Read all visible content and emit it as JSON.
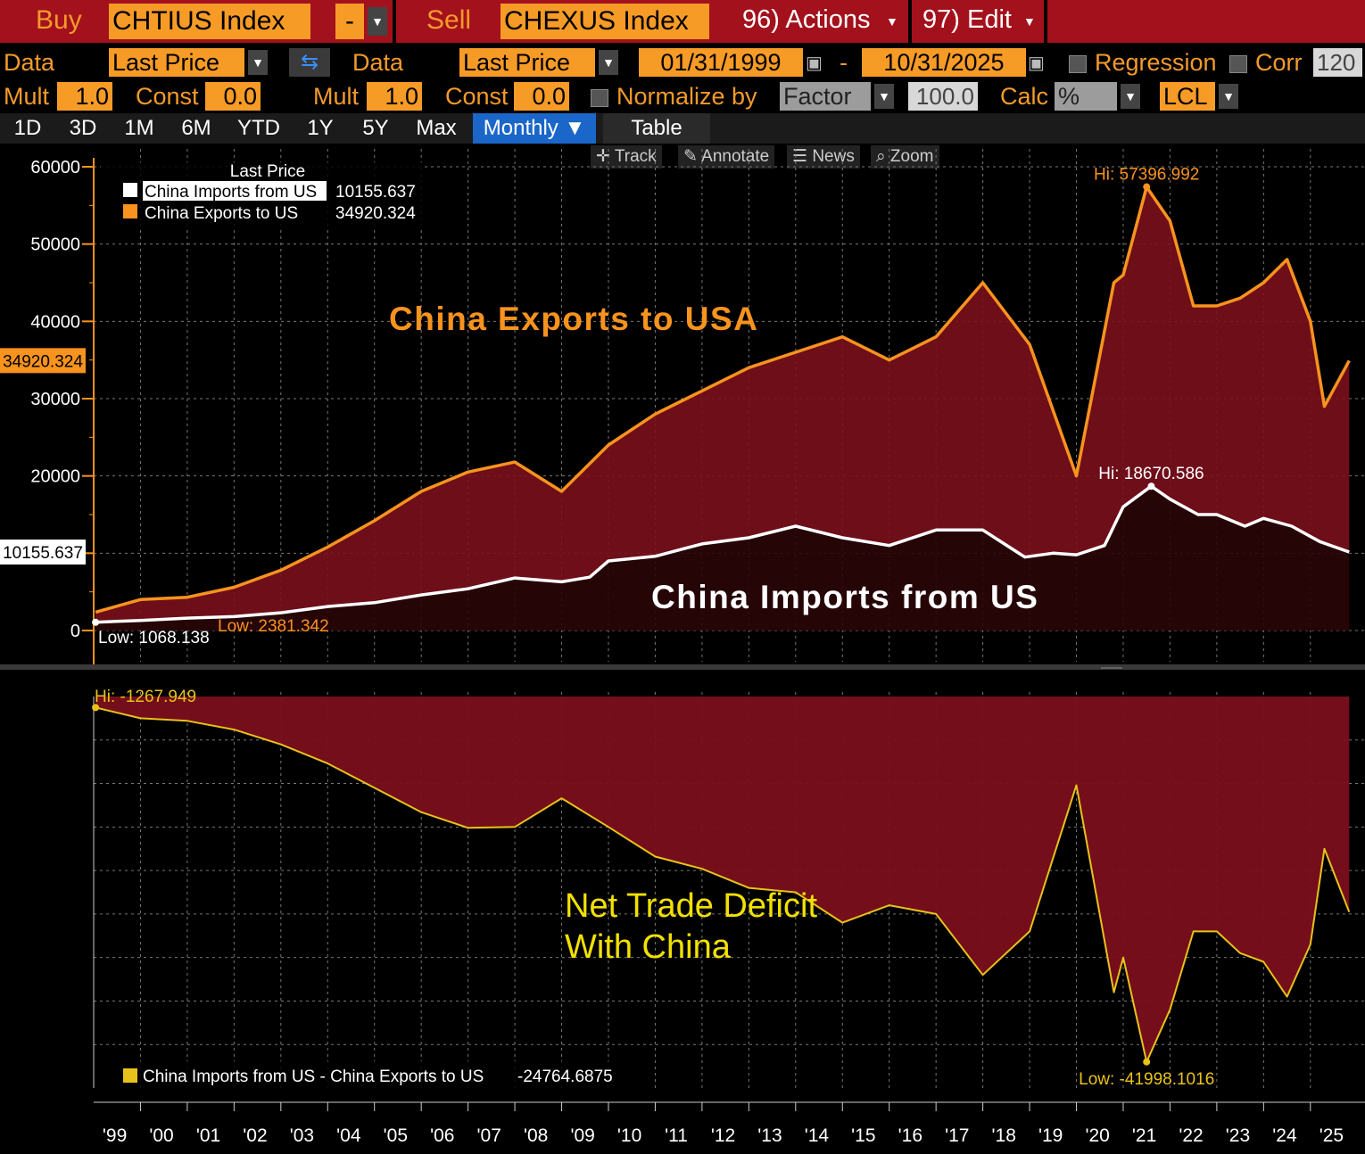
{
  "toolbar": {
    "buy_label": "Buy",
    "buy_ticker": "CHTIUS Index",
    "operator": "-",
    "sell_label": "Sell",
    "sell_ticker": "CHEXUS Index",
    "actions": "96) Actions",
    "edit": "97) Edit"
  },
  "settings": {
    "data_label": "Data",
    "data1": "Last Price",
    "data2_label": "Data",
    "data2": "Last Price",
    "start_date": "01/31/1999",
    "date_sep": "-",
    "end_date": "10/31/2025",
    "regression": "Regression",
    "corr": "Corr",
    "corr_value": "120",
    "mult1_label": "Mult",
    "mult1": "1.0",
    "const1_label": "Const",
    "const1": "0.0",
    "mult2_label": "Mult",
    "mult2": "1.0",
    "const2_label": "Const",
    "const2": "0.0",
    "normalize_label": "Normalize by",
    "normalize_value": "Factor",
    "factor_value": "100.0",
    "calc_label": "Calc",
    "calc_value": "%",
    "currency": "LCL"
  },
  "periods": [
    "1D",
    "3D",
    "1M",
    "6M",
    "YTD",
    "1Y",
    "5Y",
    "Max"
  ],
  "period_selected": "Monthly ▼",
  "table_label": "Table",
  "tools": [
    "Track",
    "Annotate",
    "News",
    "Zoom"
  ],
  "colors": {
    "exports": "#f7931e",
    "imports": "#ffffff",
    "deficit_line": "#e8c21a",
    "fill": "#7a0f1c",
    "toolbar": "#a3111c"
  },
  "chart_data": [
    {
      "type": "area",
      "title": "Last Price",
      "ylim": [
        0,
        60000
      ],
      "yticks": [
        0,
        10000,
        20000,
        30000,
        40000,
        50000,
        60000
      ],
      "ytick_labels": [
        "0",
        "10000",
        "20000",
        "30000",
        "40000",
        "50000",
        "60000"
      ],
      "legend_title": "Last Price",
      "series": [
        {
          "name": "China Imports from US",
          "last": "10155.637",
          "hi_label": "Hi: 18670.586",
          "low_label": "Low: 1068.138",
          "points": [
            [
              1999.04,
              1068
            ],
            [
              2000,
              1300
            ],
            [
              2001,
              1600
            ],
            [
              2002,
              1800
            ],
            [
              2003,
              2300
            ],
            [
              2004,
              3100
            ],
            [
              2005,
              3600
            ],
            [
              2006,
              4600
            ],
            [
              2007,
              5400
            ],
            [
              2008,
              6800
            ],
            [
              2009,
              6300
            ],
            [
              2009.6,
              6900
            ],
            [
              2010,
              9000
            ],
            [
              2011,
              9600
            ],
            [
              2012,
              11200
            ],
            [
              2013,
              12000
            ],
            [
              2014,
              13500
            ],
            [
              2015,
              12000
            ],
            [
              2016,
              11000
            ],
            [
              2017,
              13000
            ],
            [
              2018,
              13000
            ],
            [
              2018.9,
              9500
            ],
            [
              2019.5,
              10000
            ],
            [
              2020,
              9800
            ],
            [
              2020.6,
              11000
            ],
            [
              2021,
              16000
            ],
            [
              2021.6,
              18670.586
            ],
            [
              2022,
              17000
            ],
            [
              2022.6,
              15000
            ],
            [
              2023,
              15000
            ],
            [
              2023.6,
              13500
            ],
            [
              2024,
              14500
            ],
            [
              2024.6,
              13500
            ],
            [
              2025.2,
              11500
            ],
            [
              2025.83,
              10155.637
            ]
          ]
        },
        {
          "name": "China Exports to US",
          "last": "34920.324",
          "hi_label": "Hi: 57396.992",
          "low_label": "Low: 2381.342",
          "points": [
            [
              1999.04,
              2381
            ],
            [
              2000,
              4000
            ],
            [
              2001,
              4300
            ],
            [
              2002,
              5600
            ],
            [
              2003,
              7800
            ],
            [
              2004,
              10800
            ],
            [
              2005,
              14200
            ],
            [
              2006,
              18000
            ],
            [
              2007,
              20500
            ],
            [
              2008,
              21800
            ],
            [
              2009,
              18000
            ],
            [
              2010,
              24000
            ],
            [
              2011,
              28000
            ],
            [
              2012,
              31000
            ],
            [
              2013,
              34000
            ],
            [
              2014,
              36000
            ],
            [
              2015,
              38000
            ],
            [
              2016,
              35000
            ],
            [
              2017,
              38000
            ],
            [
              2018,
              45000
            ],
            [
              2019,
              37000
            ],
            [
              2020,
              20000
            ],
            [
              2020.8,
              45000
            ],
            [
              2021,
              46000
            ],
            [
              2021.5,
              57396.992
            ],
            [
              2022,
              53000
            ],
            [
              2022.5,
              42000
            ],
            [
              2023,
              42000
            ],
            [
              2023.5,
              43000
            ],
            [
              2024,
              45000
            ],
            [
              2024.5,
              48000
            ],
            [
              2025,
              40000
            ],
            [
              2025.3,
              29000
            ],
            [
              2025.83,
              34920.324
            ]
          ]
        }
      ],
      "annotations": [
        "China Exports to USA",
        "China Imports from US"
      ]
    },
    {
      "type": "area",
      "title": "Net Trade Deficit With China",
      "ylim": [
        -45000,
        0
      ],
      "legend": "China Imports from US - China Exports to US",
      "last": "-24764.6875",
      "hi_label": "Hi: -1267.949",
      "low_label": "Low: -41998.1016",
      "annotation_line1": "Net Trade Deficit",
      "annotation_line2": "With China",
      "points": [
        [
          1999.04,
          -1268
        ],
        [
          2000,
          -2500
        ],
        [
          2001,
          -2800
        ],
        [
          2002,
          -3800
        ],
        [
          2003,
          -5500
        ],
        [
          2004,
          -7700
        ],
        [
          2005,
          -10500
        ],
        [
          2006,
          -13300
        ],
        [
          2007,
          -15100
        ],
        [
          2008,
          -15000
        ],
        [
          2009,
          -11700
        ],
        [
          2010,
          -15000
        ],
        [
          2011,
          -18400
        ],
        [
          2012,
          -19800
        ],
        [
          2013,
          -22000
        ],
        [
          2014,
          -22500
        ],
        [
          2015,
          -26000
        ],
        [
          2016,
          -24000
        ],
        [
          2017,
          -25000
        ],
        [
          2018,
          -32000
        ],
        [
          2019,
          -27000
        ],
        [
          2020,
          -10200
        ],
        [
          2020.8,
          -34000
        ],
        [
          2021,
          -30000
        ],
        [
          2021.5,
          -41998.1016
        ],
        [
          2022,
          -36000
        ],
        [
          2022.5,
          -27000
        ],
        [
          2023,
          -27000
        ],
        [
          2023.5,
          -29500
        ],
        [
          2024,
          -30500
        ],
        [
          2024.5,
          -34500
        ],
        [
          2025,
          -28500
        ],
        [
          2025.3,
          -17500
        ],
        [
          2025.83,
          -24764.6875
        ]
      ]
    }
  ],
  "x_axis": {
    "range": [
      1999,
      2025.9
    ],
    "labels": [
      "'99",
      "'00",
      "'01",
      "'02",
      "'03",
      "'04",
      "'05",
      "'06",
      "'07",
      "'08",
      "'09",
      "'10",
      "'11",
      "'12",
      "'13",
      "'14",
      "'15",
      "'16",
      "'17",
      "'18",
      "'19",
      "'20",
      "'21",
      "'22",
      "'23",
      "'24",
      "'25"
    ]
  }
}
